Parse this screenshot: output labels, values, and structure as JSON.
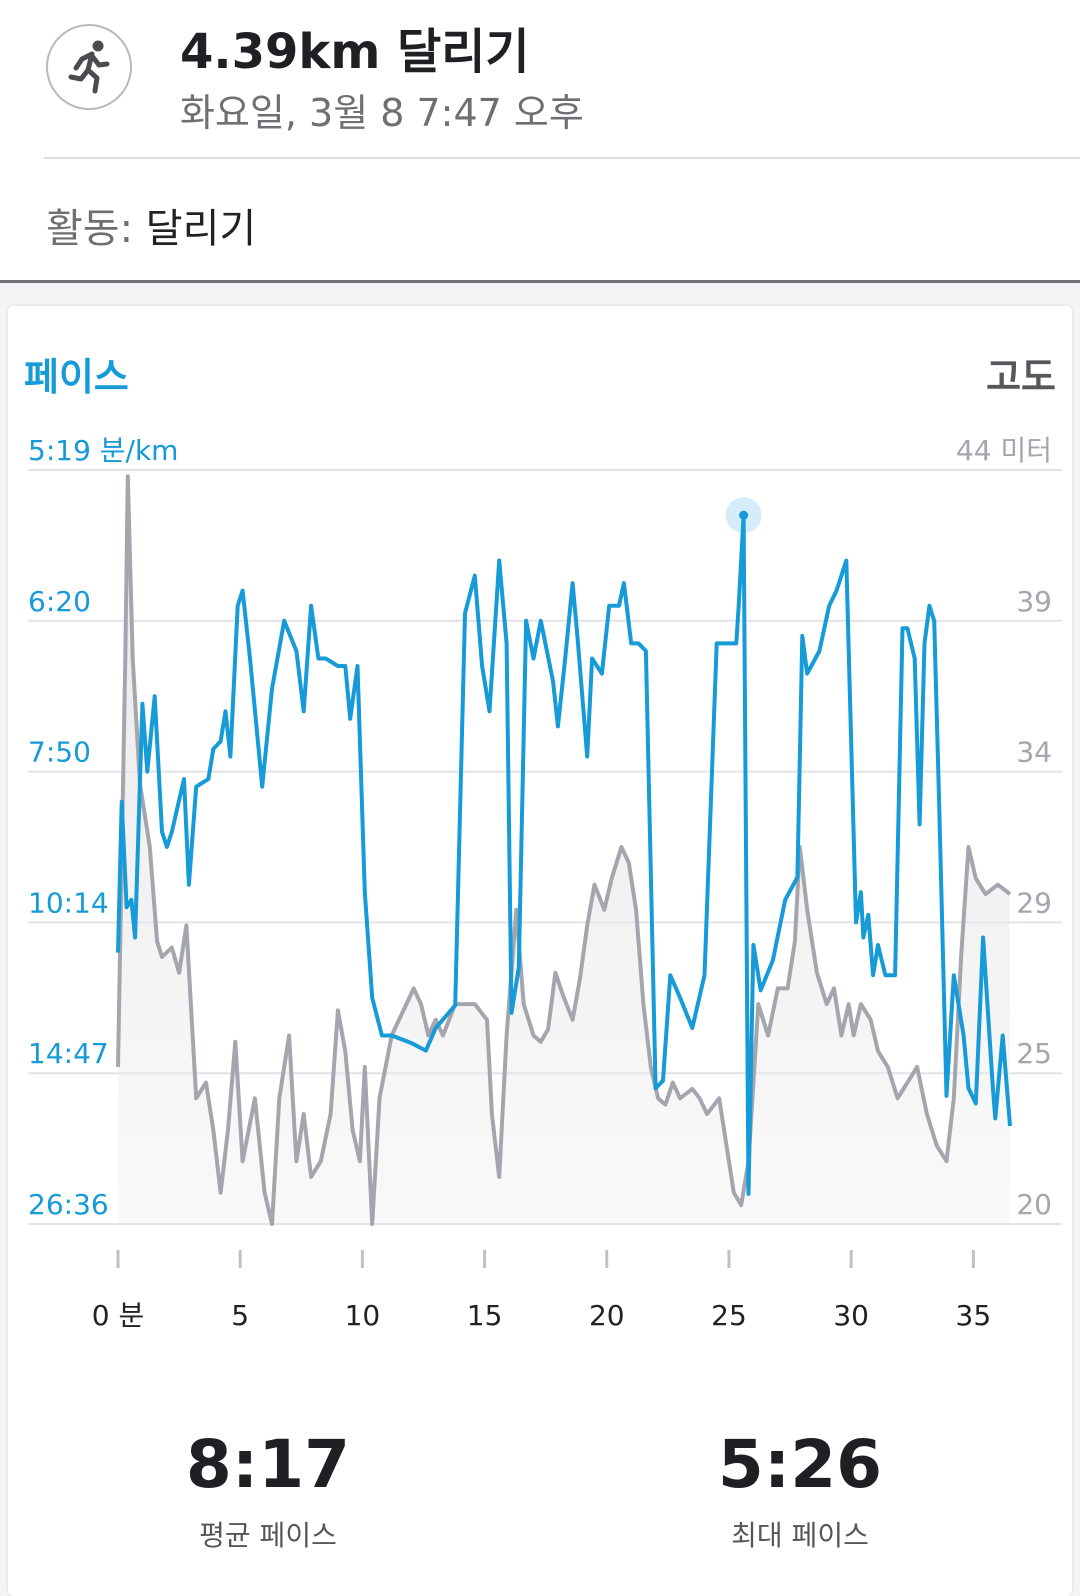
{
  "header": {
    "title": "4.39km 달리기",
    "subtitle": "화요일, 3월 8 7:47 오후",
    "icon": "running-person-icon"
  },
  "activity": {
    "label": "활동:",
    "value": "달리기"
  },
  "legend": {
    "left": "페이스",
    "right": "고도"
  },
  "stats": [
    {
      "value": "8:17",
      "label": "평균 페이스"
    },
    {
      "value": "5:26",
      "label": "최대 페이스"
    }
  ],
  "colors": {
    "pace": "#169ad8",
    "elevation": "#a4a6ae",
    "elevation_fill": "#e8e8ea"
  },
  "chart_data": {
    "type": "line",
    "xlabel_suffix": "분",
    "xlim": [
      0,
      36.5
    ],
    "x_ticks": [
      0,
      5,
      10,
      15,
      20,
      25,
      30,
      35
    ],
    "x_tick_labels": [
      "0 분",
      "5",
      "10",
      "15",
      "20",
      "25",
      "30",
      "35"
    ],
    "y_left_tick_labels": [
      "5:19 분/km",
      "6:20",
      "7:50",
      "10:14",
      "14:47",
      "26:36"
    ],
    "y_right_tick_labels": [
      "44 미터",
      "39",
      "34",
      "29",
      "25",
      "20"
    ],
    "y_right_ticks": [
      44,
      39,
      34,
      29,
      25,
      20
    ],
    "y_right_range": [
      20,
      44
    ],
    "pace_axis_range": [
      0,
      100
    ],
    "series": [
      {
        "name": "페이스",
        "axis": "left",
        "points": [
          [
            0,
            36
          ],
          [
            0.15,
            56
          ],
          [
            0.35,
            42
          ],
          [
            0.55,
            43
          ],
          [
            0.7,
            38
          ],
          [
            1.0,
            69
          ],
          [
            1.2,
            60
          ],
          [
            1.5,
            70
          ],
          [
            1.8,
            52
          ],
          [
            2.0,
            50
          ],
          [
            2.2,
            52
          ],
          [
            2.7,
            59
          ],
          [
            2.9,
            45
          ],
          [
            3.2,
            58
          ],
          [
            3.7,
            59
          ],
          [
            3.9,
            63
          ],
          [
            4.2,
            64
          ],
          [
            4.4,
            68
          ],
          [
            4.6,
            62
          ],
          [
            4.9,
            82
          ],
          [
            5.1,
            84
          ],
          [
            5.4,
            75
          ],
          [
            5.9,
            58
          ],
          [
            6.3,
            71
          ],
          [
            6.8,
            80
          ],
          [
            7.3,
            76
          ],
          [
            7.6,
            68
          ],
          [
            7.9,
            82
          ],
          [
            8.2,
            75
          ],
          [
            8.5,
            75
          ],
          [
            9.0,
            74
          ],
          [
            9.3,
            74
          ],
          [
            9.5,
            67
          ],
          [
            9.8,
            74
          ],
          [
            10.1,
            44
          ],
          [
            10.4,
            30
          ],
          [
            10.8,
            25
          ],
          [
            11.2,
            25
          ],
          [
            12.0,
            24
          ],
          [
            12.6,
            23
          ],
          [
            13.0,
            26
          ],
          [
            13.8,
            29
          ],
          [
            14.2,
            81
          ],
          [
            14.6,
            86
          ],
          [
            14.9,
            74
          ],
          [
            15.2,
            68
          ],
          [
            15.6,
            88
          ],
          [
            15.9,
            77
          ],
          [
            16.1,
            28
          ],
          [
            16.4,
            34
          ],
          [
            16.7,
            80
          ],
          [
            17.0,
            75
          ],
          [
            17.3,
            80
          ],
          [
            17.8,
            72
          ],
          [
            18.0,
            66
          ],
          [
            18.3,
            75
          ],
          [
            18.6,
            85
          ],
          [
            18.8,
            78
          ],
          [
            19.2,
            62
          ],
          [
            19.4,
            75
          ],
          [
            19.8,
            73
          ],
          [
            20.1,
            82
          ],
          [
            20.5,
            82
          ],
          [
            20.7,
            85
          ],
          [
            21.0,
            77
          ],
          [
            21.3,
            77
          ],
          [
            21.6,
            76
          ],
          [
            22.0,
            18
          ],
          [
            22.3,
            19
          ],
          [
            22.6,
            33
          ],
          [
            23.0,
            30
          ],
          [
            23.5,
            26
          ],
          [
            24.0,
            33
          ],
          [
            24.5,
            77
          ],
          [
            24.8,
            77
          ],
          [
            25.3,
            77
          ],
          [
            25.4,
            82
          ],
          [
            25.6,
            94
          ],
          [
            25.8,
            4
          ],
          [
            26.0,
            37
          ],
          [
            26.3,
            31
          ],
          [
            26.8,
            35
          ],
          [
            27.3,
            43
          ],
          [
            27.8,
            46
          ],
          [
            28.0,
            78
          ],
          [
            28.2,
            73
          ],
          [
            28.7,
            76
          ],
          [
            29.1,
            82
          ],
          [
            29.4,
            84
          ],
          [
            29.6,
            86
          ],
          [
            29.8,
            88
          ],
          [
            30.2,
            40
          ],
          [
            30.4,
            44
          ],
          [
            30.5,
            38
          ],
          [
            30.7,
            41
          ],
          [
            30.9,
            33
          ],
          [
            31.1,
            37
          ],
          [
            31.4,
            33
          ],
          [
            31.8,
            33
          ],
          [
            32.1,
            79
          ],
          [
            32.3,
            79
          ],
          [
            32.6,
            75
          ],
          [
            32.8,
            53
          ],
          [
            33.0,
            77
          ],
          [
            33.2,
            82
          ],
          [
            33.4,
            80
          ],
          [
            33.6,
            56
          ],
          [
            33.9,
            17
          ],
          [
            34.2,
            33
          ],
          [
            34.6,
            25
          ],
          [
            34.8,
            18
          ],
          [
            35.1,
            16
          ],
          [
            35.4,
            38
          ],
          [
            35.8,
            18
          ],
          [
            35.9,
            14
          ],
          [
            36.2,
            25
          ],
          [
            36.5,
            13
          ]
        ]
      },
      {
        "name": "고도",
        "axis": "right",
        "points": [
          [
            0,
            25
          ],
          [
            0.3,
            38
          ],
          [
            0.4,
            43.8
          ],
          [
            0.6,
            38
          ],
          [
            0.9,
            34
          ],
          [
            1.1,
            33
          ],
          [
            1.3,
            32
          ],
          [
            1.6,
            29
          ],
          [
            1.8,
            28.5
          ],
          [
            2.2,
            28.8
          ],
          [
            2.5,
            28
          ],
          [
            2.8,
            29.5
          ],
          [
            3.2,
            24
          ],
          [
            3.6,
            24.5
          ],
          [
            3.9,
            23
          ],
          [
            4.2,
            21
          ],
          [
            4.5,
            23
          ],
          [
            4.8,
            25.8
          ],
          [
            5.1,
            22
          ],
          [
            5.6,
            24
          ],
          [
            6.0,
            21
          ],
          [
            6.3,
            20
          ],
          [
            6.6,
            24
          ],
          [
            7.0,
            26
          ],
          [
            7.3,
            22
          ],
          [
            7.6,
            23.5
          ],
          [
            7.9,
            21.5
          ],
          [
            8.3,
            22
          ],
          [
            8.7,
            23.5
          ],
          [
            9.0,
            26.8
          ],
          [
            9.3,
            25.5
          ],
          [
            9.6,
            23
          ],
          [
            9.9,
            22
          ],
          [
            10.1,
            25
          ],
          [
            10.4,
            20
          ],
          [
            10.7,
            24
          ],
          [
            11.2,
            26
          ],
          [
            11.5,
            26.5
          ],
          [
            11.8,
            27
          ],
          [
            12.1,
            27.5
          ],
          [
            12.4,
            27
          ],
          [
            12.7,
            26
          ],
          [
            13.0,
            26.5
          ],
          [
            13.3,
            26
          ],
          [
            13.8,
            27
          ],
          [
            14.2,
            27
          ],
          [
            14.6,
            27
          ],
          [
            15.1,
            26.5
          ],
          [
            15.3,
            23.5
          ],
          [
            15.6,
            21.5
          ],
          [
            15.9,
            26
          ],
          [
            16.3,
            30
          ],
          [
            16.6,
            27
          ],
          [
            17.0,
            26
          ],
          [
            17.3,
            25.8
          ],
          [
            17.6,
            26.2
          ],
          [
            17.9,
            28
          ],
          [
            18.2,
            27.3
          ],
          [
            18.6,
            26.5
          ],
          [
            18.9,
            27.8
          ],
          [
            19.2,
            29.5
          ],
          [
            19.5,
            30.8
          ],
          [
            19.9,
            30
          ],
          [
            20.2,
            31
          ],
          [
            20.6,
            32
          ],
          [
            20.9,
            31.5
          ],
          [
            21.2,
            30
          ],
          [
            21.5,
            27
          ],
          [
            21.8,
            25
          ],
          [
            22.1,
            24
          ],
          [
            22.4,
            23.8
          ],
          [
            22.7,
            24.5
          ],
          [
            23.0,
            24
          ],
          [
            23.5,
            24.3
          ],
          [
            23.8,
            24
          ],
          [
            24.1,
            23.5
          ],
          [
            24.6,
            24
          ],
          [
            24.9,
            22.5
          ],
          [
            25.2,
            21
          ],
          [
            25.5,
            20.6
          ],
          [
            25.8,
            22
          ],
          [
            26.2,
            27
          ],
          [
            26.6,
            26
          ],
          [
            27.0,
            27.5
          ],
          [
            27.4,
            27.5
          ],
          [
            27.7,
            29
          ],
          [
            27.9,
            32
          ],
          [
            28.2,
            30
          ],
          [
            28.6,
            28
          ],
          [
            29.0,
            27
          ],
          [
            29.3,
            27.5
          ],
          [
            29.6,
            26
          ],
          [
            29.9,
            27
          ],
          [
            30.1,
            26
          ],
          [
            30.4,
            27
          ],
          [
            30.8,
            26.5
          ],
          [
            31.1,
            25.5
          ],
          [
            31.5,
            25
          ],
          [
            31.9,
            24
          ],
          [
            32.3,
            24.5
          ],
          [
            32.7,
            25
          ],
          [
            33.1,
            23.5
          ],
          [
            33.5,
            22.5
          ],
          [
            33.9,
            22
          ],
          [
            34.2,
            24
          ],
          [
            34.5,
            28.5
          ],
          [
            34.8,
            32
          ],
          [
            35.1,
            31
          ],
          [
            35.5,
            30.5
          ],
          [
            36.0,
            30.8
          ],
          [
            36.5,
            30.5
          ]
        ]
      }
    ],
    "highlight_point": {
      "x": 25.6,
      "y": 94,
      "series": "페이스"
    },
    "grid": true
  }
}
